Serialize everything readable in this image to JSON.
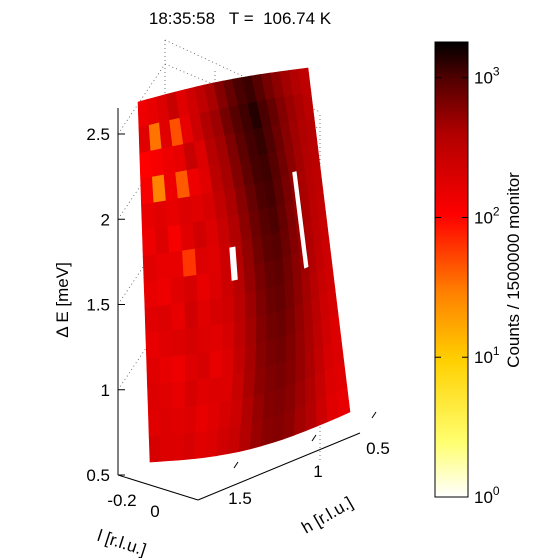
{
  "chart_data": {
    "type": "heatmap",
    "title": "18:35:58   T =  106.74 K",
    "zlabel": "Δ E [meV]",
    "xlabel": "h [r.l.u.]",
    "ylabel": "l [r.l.u.]",
    "z_ticks": [
      "0.5",
      "1",
      "1.5",
      "2",
      "2.5"
    ],
    "h_ticks": [
      "1.5",
      "1",
      "0.5"
    ],
    "l_ticks": [
      "-0.2",
      "0"
    ],
    "z_range": [
      0.5,
      2.65
    ],
    "h_range": [
      0.4,
      1.9
    ],
    "l_range": [
      -0.3,
      0.1
    ],
    "colorbar": {
      "label": "Counts / 1500000 monitor",
      "scale": "log",
      "range": [
        1,
        1800
      ],
      "ticks": [
        {
          "base": "10",
          "exp": "0",
          "value": 1
        },
        {
          "base": "10",
          "exp": "1",
          "value": 10
        },
        {
          "base": "10",
          "exp": "2",
          "value": 100
        },
        {
          "base": "10",
          "exp": "3",
          "value": 1000
        }
      ],
      "colormap": "hot"
    },
    "grid": true,
    "columns": 18,
    "rows": 14,
    "counts": [
      [
        130,
        140,
        160,
        200,
        150,
        180,
        220,
        280,
        420,
        600,
        800,
        950,
        700,
        500,
        380,
        300,
        250,
        220
      ],
      [
        150,
        30,
        150,
        45,
        140,
        190,
        260,
        320,
        500,
        700,
        900,
        1200,
        800,
        600,
        420,
        330,
        270,
        230
      ],
      [
        110,
        120,
        130,
        140,
        200,
        160,
        240,
        300,
        450,
        650,
        850,
        1000,
        750,
        550,
        400,
        310,
        260,
        240
      ],
      [
        120,
        25,
        130,
        40,
        130,
        150,
        230,
        290,
        430,
        620,
        820,
        900,
        700,
        520,
        380,
        300,
        250,
        230
      ],
      [
        140,
        150,
        140,
        160,
        150,
        170,
        210,
        270,
        400,
        580,
        760,
        850,
        650,
        480,
        360,
        280,
        240,
        220
      ],
      [
        130,
        160,
        120,
        150,
        180,
        160,
        200,
        260,
        380,
        550,
        700,
        780,
        600,
        450,
        340,
        270,
        230,
        210
      ],
      [
        150,
        140,
        140,
        60,
        160,
        150,
        190,
        250,
        360,
        520,
        650,
        700,
        560,
        420,
        330,
        260,
        220,
        200
      ],
      [
        140,
        130,
        150,
        170,
        140,
        160,
        190,
        240,
        340,
        480,
        600,
        640,
        520,
        400,
        310,
        250,
        210,
        190
      ],
      [
        150,
        160,
        140,
        180,
        150,
        170,
        180,
        230,
        320,
        450,
        560,
        600,
        500,
        380,
        300,
        240,
        200,
        180
      ],
      [
        140,
        150,
        160,
        170,
        160,
        150,
        170,
        220,
        300,
        420,
        520,
        560,
        470,
        360,
        290,
        230,
        190,
        170
      ],
      [
        150,
        140,
        130,
        160,
        170,
        140,
        160,
        210,
        290,
        400,
        480,
        520,
        440,
        350,
        280,
        220,
        180,
        160
      ],
      [
        160,
        150,
        140,
        170,
        150,
        160,
        160,
        200,
        280,
        380,
        450,
        480,
        420,
        340,
        270,
        210,
        170,
        160
      ],
      [
        150,
        160,
        150,
        160,
        140,
        150,
        170,
        190,
        260,
        350,
        420,
        450,
        400,
        320,
        260,
        200,
        160,
        150
      ],
      [
        170,
        160,
        160,
        170,
        150,
        160,
        180,
        200,
        250,
        330,
        400,
        420,
        380,
        300,
        250,
        190,
        150,
        140
      ]
    ]
  }
}
